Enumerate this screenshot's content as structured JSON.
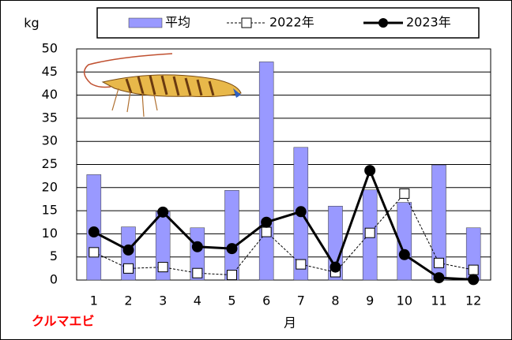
{
  "chart_data": {
    "type": "bar",
    "y_label": "kg",
    "x_label": "月",
    "annotation": "クルマエビ",
    "categories": [
      "1",
      "2",
      "3",
      "4",
      "5",
      "6",
      "7",
      "8",
      "9",
      "10",
      "11",
      "12"
    ],
    "series": [
      {
        "name": "平均",
        "type": "bar",
        "color": "#9999ff",
        "values": [
          22.8,
          11.5,
          14.8,
          11.3,
          19.4,
          47.2,
          28.7,
          16.0,
          19.5,
          16.8,
          24.9,
          11.3
        ]
      },
      {
        "name": "2022年",
        "type": "line",
        "style": "dashed",
        "marker": "square",
        "color": "#000000",
        "values": [
          6.0,
          2.5,
          2.8,
          1.5,
          1.1,
          10.4,
          3.4,
          1.7,
          10.2,
          18.7,
          3.7,
          2.2
        ]
      },
      {
        "name": "2023年",
        "type": "line",
        "style": "solid",
        "marker": "circle",
        "color": "#000000",
        "values": [
          10.4,
          6.5,
          14.7,
          7.2,
          6.8,
          12.5,
          14.8,
          2.8,
          23.7,
          5.5,
          0.5,
          0.1
        ]
      }
    ],
    "ylim": [
      0,
      50
    ],
    "yticks": [
      0,
      5,
      10,
      15,
      20,
      25,
      30,
      35,
      40,
      45,
      50
    ],
    "grid": true
  }
}
